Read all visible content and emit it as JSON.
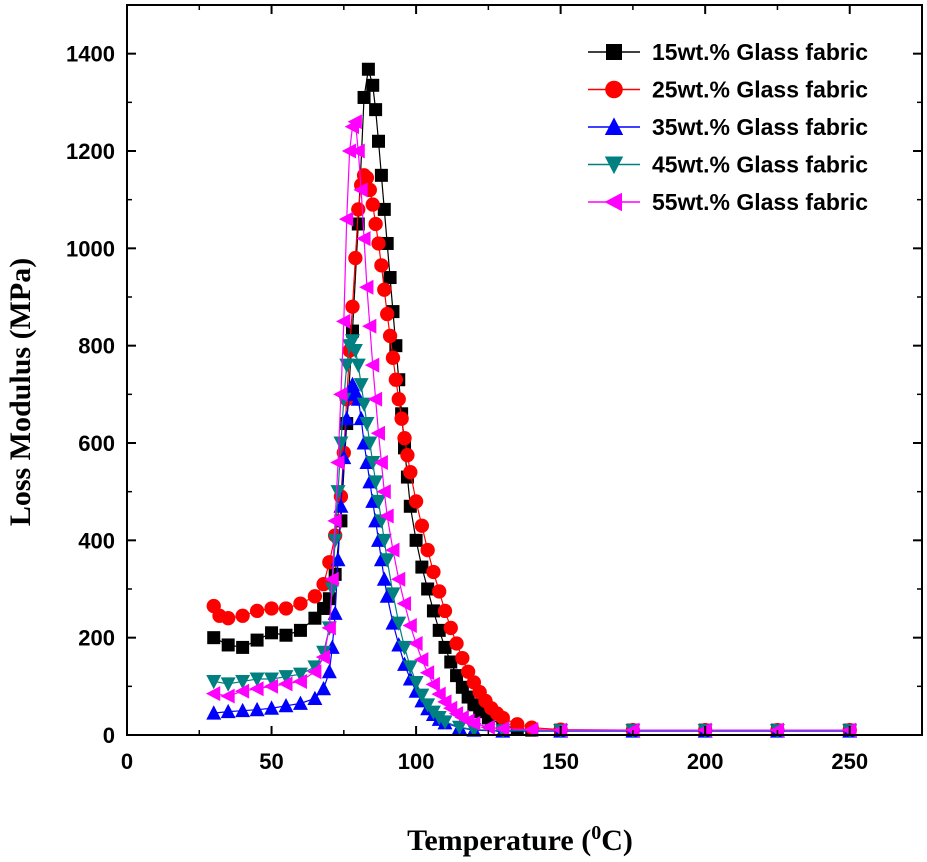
{
  "chart_data": {
    "type": "scatter",
    "xlabel": "Temperature (",
    "xlabel_sup": "0",
    "xlabel_end": "C)",
    "ylabel": "Loss Modulus (MPa)",
    "xlim": [
      0,
      275
    ],
    "ylim": [
      0,
      1500
    ],
    "xticks": [
      0,
      50,
      100,
      150,
      200,
      250
    ],
    "yticks": [
      0,
      200,
      400,
      600,
      800,
      1000,
      1200,
      1400
    ],
    "legend_position": "top-right",
    "grid": false,
    "series": [
      {
        "name": "15wt.% Glass fabric",
        "color": "#000000",
        "marker": "square",
        "points": [
          [
            30,
            200
          ],
          [
            35,
            185
          ],
          [
            40,
            180
          ],
          [
            45,
            195
          ],
          [
            50,
            210
          ],
          [
            55,
            205
          ],
          [
            60,
            215
          ],
          [
            65,
            240
          ],
          [
            68,
            260
          ],
          [
            70,
            280
          ],
          [
            72,
            330
          ],
          [
            74,
            440
          ],
          [
            76,
            640
          ],
          [
            78,
            830
          ],
          [
            80,
            1050
          ],
          [
            82,
            1310
          ],
          [
            83.5,
            1368
          ],
          [
            85,
            1335
          ],
          [
            86,
            1285
          ],
          [
            87,
            1220
          ],
          [
            88,
            1150
          ],
          [
            89,
            1080
          ],
          [
            90,
            1010
          ],
          [
            91,
            940
          ],
          [
            92,
            870
          ],
          [
            93,
            800
          ],
          [
            94,
            730
          ],
          [
            95,
            660
          ],
          [
            96,
            590
          ],
          [
            97,
            530
          ],
          [
            98,
            470
          ],
          [
            100,
            400
          ],
          [
            102,
            345
          ],
          [
            104,
            300
          ],
          [
            106,
            255
          ],
          [
            108,
            215
          ],
          [
            110,
            180
          ],
          [
            112,
            150
          ],
          [
            114,
            122
          ],
          [
            116,
            98
          ],
          [
            118,
            78
          ],
          [
            120,
            62
          ],
          [
            122,
            48
          ],
          [
            125,
            35
          ],
          [
            130,
            20
          ],
          [
            135,
            13
          ],
          [
            140,
            10
          ],
          [
            150,
            10
          ],
          [
            175,
            10
          ],
          [
            200,
            10
          ],
          [
            225,
            10
          ],
          [
            250,
            10
          ]
        ]
      },
      {
        "name": "25wt.% Glass fabric",
        "color": "#ff0000",
        "marker": "circle",
        "points": [
          [
            30,
            265
          ],
          [
            32,
            245
          ],
          [
            35,
            240
          ],
          [
            40,
            245
          ],
          [
            45,
            255
          ],
          [
            50,
            260
          ],
          [
            55,
            260
          ],
          [
            60,
            270
          ],
          [
            65,
            285
          ],
          [
            68,
            310
          ],
          [
            70,
            355
          ],
          [
            72,
            410
          ],
          [
            74,
            490
          ],
          [
            75,
            580
          ],
          [
            76,
            690
          ],
          [
            77,
            790
          ],
          [
            78,
            880
          ],
          [
            79,
            980
          ],
          [
            80,
            1080
          ],
          [
            81,
            1130
          ],
          [
            82,
            1150
          ],
          [
            83,
            1145
          ],
          [
            84,
            1120
          ],
          [
            85,
            1090
          ],
          [
            86,
            1050
          ],
          [
            87,
            1010
          ],
          [
            88,
            965
          ],
          [
            89,
            915
          ],
          [
            90,
            865
          ],
          [
            91,
            820
          ],
          [
            92,
            775
          ],
          [
            93,
            730
          ],
          [
            94,
            690
          ],
          [
            95,
            650
          ],
          [
            96,
            610
          ],
          [
            97,
            575
          ],
          [
            98,
            540
          ],
          [
            100,
            480
          ],
          [
            102,
            430
          ],
          [
            104,
            380
          ],
          [
            106,
            335
          ],
          [
            108,
            295
          ],
          [
            110,
            255
          ],
          [
            112,
            220
          ],
          [
            114,
            188
          ],
          [
            116,
            158
          ],
          [
            118,
            130
          ],
          [
            120,
            108
          ],
          [
            122,
            88
          ],
          [
            124,
            70
          ],
          [
            126,
            55
          ],
          [
            128,
            44
          ],
          [
            130,
            35
          ],
          [
            135,
            22
          ],
          [
            140,
            15
          ],
          [
            150,
            11
          ],
          [
            175,
            10
          ],
          [
            200,
            10
          ],
          [
            225,
            10
          ],
          [
            250,
            10
          ]
        ]
      },
      {
        "name": "35wt.% Glass fabric",
        "color": "#0000ff",
        "marker": "triangle-up",
        "points": [
          [
            30,
            45
          ],
          [
            35,
            48
          ],
          [
            40,
            50
          ],
          [
            45,
            52
          ],
          [
            50,
            55
          ],
          [
            55,
            60
          ],
          [
            60,
            65
          ],
          [
            65,
            75
          ],
          [
            68,
            95
          ],
          [
            70,
            130
          ],
          [
            71,
            180
          ],
          [
            72,
            250
          ],
          [
            73,
            360
          ],
          [
            74,
            470
          ],
          [
            75,
            570
          ],
          [
            76,
            650
          ],
          [
            77,
            700
          ],
          [
            78,
            720
          ],
          [
            79,
            705
          ],
          [
            80,
            690
          ],
          [
            81,
            650
          ],
          [
            82,
            600
          ],
          [
            83,
            560
          ],
          [
            84,
            520
          ],
          [
            85,
            480
          ],
          [
            86,
            440
          ],
          [
            87,
            400
          ],
          [
            88,
            360
          ],
          [
            89,
            320
          ],
          [
            90,
            285
          ],
          [
            92,
            230
          ],
          [
            94,
            185
          ],
          [
            96,
            145
          ],
          [
            98,
            115
          ],
          [
            100,
            90
          ],
          [
            102,
            70
          ],
          [
            104,
            54
          ],
          [
            106,
            42
          ],
          [
            108,
            32
          ],
          [
            110,
            25
          ],
          [
            115,
            15
          ],
          [
            120,
            10
          ],
          [
            130,
            8
          ],
          [
            150,
            8
          ],
          [
            175,
            8
          ],
          [
            200,
            8
          ],
          [
            225,
            8
          ],
          [
            250,
            8
          ]
        ]
      },
      {
        "name": "45wt.% Glass fabric",
        "color": "#008080",
        "marker": "triangle-down",
        "points": [
          [
            30,
            110
          ],
          [
            35,
            105
          ],
          [
            40,
            110
          ],
          [
            45,
            115
          ],
          [
            50,
            115
          ],
          [
            55,
            120
          ],
          [
            60,
            125
          ],
          [
            65,
            140
          ],
          [
            68,
            170
          ],
          [
            70,
            220
          ],
          [
            71,
            300
          ],
          [
            72,
            400
          ],
          [
            73,
            500
          ],
          [
            74,
            600
          ],
          [
            75,
            690
          ],
          [
            76,
            760
          ],
          [
            77,
            800
          ],
          [
            78,
            810
          ],
          [
            79,
            790
          ],
          [
            80,
            760
          ],
          [
            81,
            720
          ],
          [
            82,
            680
          ],
          [
            83,
            640
          ],
          [
            84,
            600
          ],
          [
            85,
            560
          ],
          [
            86,
            520
          ],
          [
            87,
            480
          ],
          [
            88,
            440
          ],
          [
            89,
            400
          ],
          [
            90,
            360
          ],
          [
            92,
            290
          ],
          [
            94,
            230
          ],
          [
            96,
            180
          ],
          [
            98,
            140
          ],
          [
            100,
            108
          ],
          [
            102,
            82
          ],
          [
            104,
            62
          ],
          [
            106,
            47
          ],
          [
            108,
            36
          ],
          [
            110,
            27
          ],
          [
            115,
            16
          ],
          [
            120,
            11
          ],
          [
            130,
            9
          ],
          [
            150,
            9
          ],
          [
            175,
            9
          ],
          [
            200,
            9
          ],
          [
            225,
            9
          ],
          [
            250,
            9
          ]
        ]
      },
      {
        "name": "55wt.% Glass fabric",
        "color": "#ff00ff",
        "marker": "triangle-left",
        "points": [
          [
            30,
            85
          ],
          [
            35,
            80
          ],
          [
            40,
            90
          ],
          [
            45,
            95
          ],
          [
            50,
            100
          ],
          [
            55,
            105
          ],
          [
            60,
            110
          ],
          [
            65,
            130
          ],
          [
            68,
            160
          ],
          [
            70,
            220
          ],
          [
            71,
            320
          ],
          [
            72,
            440
          ],
          [
            73,
            560
          ],
          [
            74,
            700
          ],
          [
            75,
            850
          ],
          [
            76,
            1060
          ],
          [
            77,
            1200
          ],
          [
            78,
            1250
          ],
          [
            79,
            1260
          ],
          [
            80,
            1200
          ],
          [
            81,
            1120
          ],
          [
            82,
            1020
          ],
          [
            83,
            920
          ],
          [
            84,
            840
          ],
          [
            85,
            760
          ],
          [
            86,
            690
          ],
          [
            87,
            620
          ],
          [
            88,
            560
          ],
          [
            89,
            500
          ],
          [
            90,
            450
          ],
          [
            92,
            380
          ],
          [
            94,
            320
          ],
          [
            96,
            270
          ],
          [
            98,
            225
          ],
          [
            100,
            188
          ],
          [
            102,
            155
          ],
          [
            104,
            128
          ],
          [
            106,
            104
          ],
          [
            108,
            84
          ],
          [
            110,
            68
          ],
          [
            112,
            55
          ],
          [
            114,
            44
          ],
          [
            116,
            36
          ],
          [
            118,
            29
          ],
          [
            120,
            24
          ],
          [
            125,
            16
          ],
          [
            130,
            13
          ],
          [
            140,
            11
          ],
          [
            150,
            10
          ],
          [
            175,
            10
          ],
          [
            200,
            10
          ],
          [
            225,
            10
          ],
          [
            250,
            10
          ]
        ]
      }
    ]
  }
}
